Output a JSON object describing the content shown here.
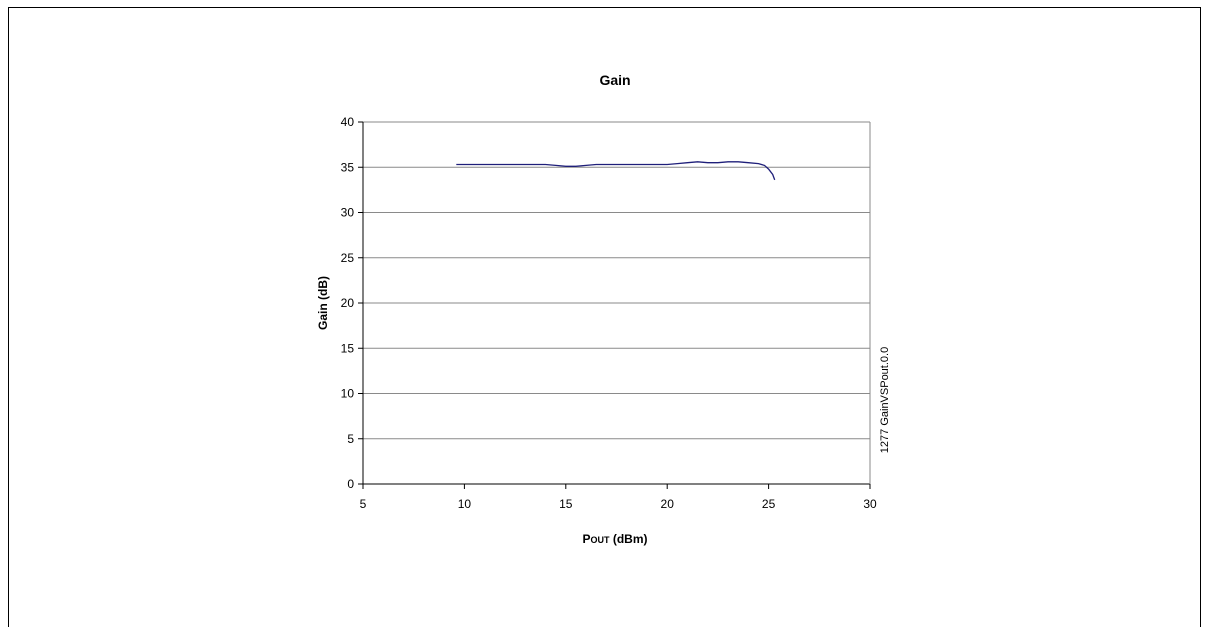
{
  "chart_data": {
    "type": "line",
    "title": "Gain",
    "xlabel_main": "P",
    "xlabel_sub": "OUT",
    "xlabel_unit": " (dBm)",
    "ylabel": "Gain (dB)",
    "xlim": [
      5,
      30
    ],
    "ylim": [
      0,
      40
    ],
    "xticks": [
      5,
      10,
      15,
      20,
      25,
      30
    ],
    "yticks": [
      0,
      5,
      10,
      15,
      20,
      25,
      30,
      35,
      40
    ],
    "grid": "horizontal",
    "legend": "none",
    "line_color": "#1f1f7a",
    "series": [
      {
        "x": [
          9.6,
          10,
          11,
          12,
          13,
          14,
          14.5,
          15,
          15.5,
          16,
          16.5,
          17,
          18,
          19,
          20,
          20.5,
          21,
          21.5,
          22,
          22.5,
          23,
          23.5,
          24,
          24.5,
          24.8,
          25.0,
          25.2,
          25.3
        ],
        "y": [
          35.3,
          35.3,
          35.3,
          35.3,
          35.3,
          35.3,
          35.2,
          35.1,
          35.1,
          35.2,
          35.3,
          35.3,
          35.3,
          35.3,
          35.3,
          35.4,
          35.5,
          35.6,
          35.5,
          35.5,
          35.6,
          35.6,
          35.5,
          35.4,
          35.2,
          34.8,
          34.2,
          33.6
        ]
      }
    ],
    "side_note": "1277 GainVSPout.0.0"
  }
}
